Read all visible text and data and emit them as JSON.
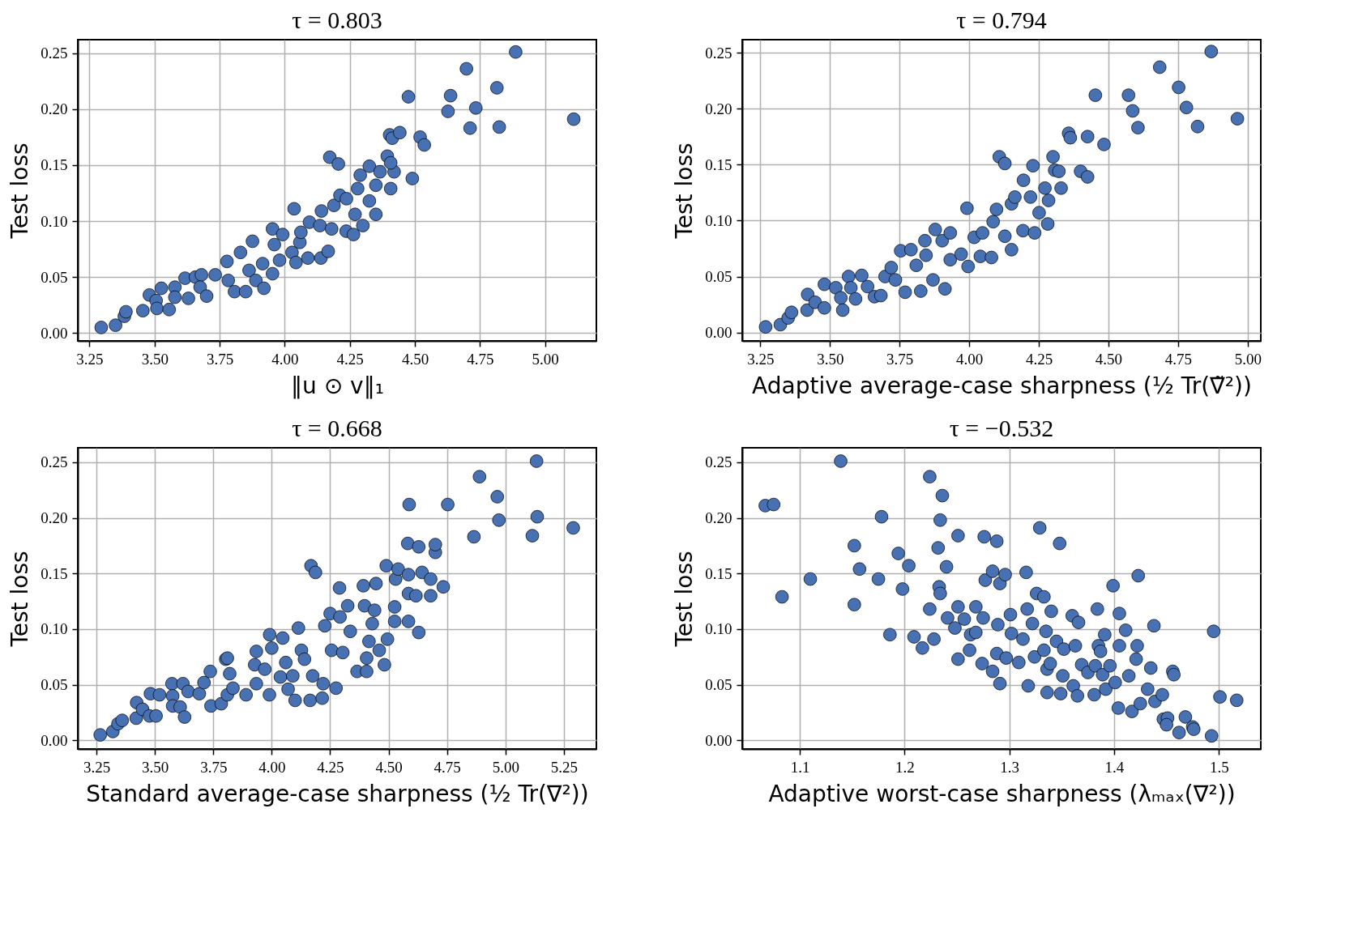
{
  "chart_data": [
    {
      "type": "scatter",
      "title": "τ = 0.803",
      "xlabel": "‖u ⊙ v‖₁",
      "ylabel": "Test loss",
      "grid": true,
      "marker": "circle",
      "xlim": [
        3.205,
        5.197
      ],
      "ylim": [
        -0.007,
        0.262
      ],
      "xticks": [
        3.25,
        {
          "value": 3.5,
          "label": "3.50"
        },
        3.75,
        {
          "value": 4,
          "label": "4.00"
        },
        4.25,
        {
          "value": 4.5,
          "label": "4.50"
        },
        4.75,
        {
          "value": 5,
          "label": "5.00"
        }
      ],
      "yticks": [
        {
          "value": 0,
          "label": "0.00"
        },
        0.05,
        {
          "value": 0.1,
          "label": "0.10"
        },
        0.15,
        {
          "value": 0.2,
          "label": "0.20"
        },
        0.25
      ],
      "series": [
        {
          "color": "#4771b2",
          "x": [
            3.295,
            3.35,
            3.384,
            3.39,
            3.455,
            3.48,
            3.506,
            3.509,
            3.556,
            3.526,
            3.578,
            3.578,
            3.63,
            3.617,
            3.657,
            3.68,
            3.675,
            3.7,
            3.733,
            3.778,
            3.783,
            3.807,
            3.85,
            3.83,
            3.876,
            3.863,
            3.889,
            3.915,
            3.92,
            3.953,
            3.953,
            3.96,
            3.98,
            3.992,
            4.028,
            4.036,
            4.043,
            4.058,
            4.062,
            4.095,
            4.089,
            4.135,
            4.139,
            4.167,
            4.141,
            4.18,
            4.189,
            4.212,
            4.237,
            4.236,
            4.264,
            4.27,
            4.3,
            4.173,
            4.206,
            4.28,
            4.29,
            4.325,
            4.325,
            4.35,
            4.35,
            4.366,
            4.394,
            4.42,
            4.407,
            4.407,
            4.403,
            4.413,
            4.442,
            4.49,
            4.52,
            4.536,
            4.475,
            4.627,
            4.637,
            4.698,
            4.712,
            4.734,
            4.815,
            4.824,
            4.887,
            5.11
          ],
          "values": [
            0.005,
            0.007,
            0.015,
            0.019,
            0.02,
            0.034,
            0.029,
            0.022,
            0.021,
            0.04,
            0.041,
            0.032,
            0.031,
            0.049,
            0.05,
            0.052,
            0.041,
            0.033,
            0.052,
            0.064,
            0.047,
            0.037,
            0.037,
            0.072,
            0.082,
            0.056,
            0.047,
            0.062,
            0.04,
            0.053,
            0.093,
            0.079,
            0.065,
            0.088,
            0.072,
            0.111,
            0.063,
            0.081,
            0.09,
            0.099,
            0.067,
            0.096,
            0.067,
            0.073,
            0.109,
            0.093,
            0.114,
            0.123,
            0.12,
            0.091,
            0.088,
            0.106,
            0.096,
            0.157,
            0.151,
            0.129,
            0.141,
            0.149,
            0.118,
            0.106,
            0.132,
            0.144,
            0.158,
            0.144,
            0.129,
            0.152,
            0.177,
            0.174,
            0.179,
            0.138,
            0.175,
            0.168,
            0.211,
            0.198,
            0.212,
            0.236,
            0.183,
            0.201,
            0.219,
            0.184,
            0.251,
            0.191
          ]
        }
      ]
    },
    {
      "type": "scatter",
      "title": "τ = 0.794",
      "xlabel": "Adaptive average-case sharpness (½ Tr(∇̃²))",
      "ylabel": "Test loss",
      "grid": true,
      "marker": "circle",
      "xlim": [
        3.185,
        5.047
      ],
      "ylim": [
        -0.0075,
        0.2616
      ],
      "xticks": [
        3.25,
        {
          "value": 3.5,
          "label": "3.50"
        },
        3.75,
        {
          "value": 4,
          "label": "4.00"
        },
        4.25,
        {
          "value": 4.5,
          "label": "4.50"
        },
        4.75,
        {
          "value": 5,
          "label": "5.00"
        }
      ],
      "yticks": [
        {
          "value": 0,
          "label": "0.00"
        },
        0.05,
        {
          "value": 0.1,
          "label": "0.10"
        },
        0.15,
        {
          "value": 0.2,
          "label": "0.20"
        },
        0.25
      ],
      "series": [
        {
          "color": "#4771b2",
          "x": [
            3.269,
            3.322,
            3.35,
            3.362,
            3.418,
            3.42,
            3.447,
            3.48,
            3.48,
            3.521,
            3.539,
            3.546,
            3.567,
            3.575,
            3.592,
            3.614,
            3.635,
            3.66,
            3.683,
            3.698,
            3.72,
            3.754,
            3.735,
            3.77,
            3.791,
            3.81,
            3.826,
            3.841,
            3.845,
            3.87,
            3.878,
            3.903,
            3.913,
            3.932,
            3.932,
            3.971,
            3.992,
            3.996,
            4.018,
            4.04,
            4.048,
            4.08,
            4.086,
            4.108,
            4.128,
            4.128,
            4.098,
            4.152,
            4.152,
            4.164,
            4.193,
            4.195,
            4.22,
            4.229,
            4.235,
            4.251,
            4.272,
            4.285,
            4.282,
            4.301,
            4.307,
            4.322,
            4.33,
            4.357,
            4.363,
            4.4,
            4.425,
            4.425,
            4.484,
            4.453,
            4.572,
            4.587,
            4.606,
            4.684,
            4.752,
            4.78,
            4.82,
            4.869,
            4.963
          ],
          "values": [
            0.005,
            0.007,
            0.013,
            0.018,
            0.02,
            0.034,
            0.027,
            0.043,
            0.022,
            0.04,
            0.031,
            0.02,
            0.05,
            0.04,
            0.03,
            0.051,
            0.041,
            0.032,
            0.033,
            0.05,
            0.058,
            0.073,
            0.047,
            0.036,
            0.074,
            0.06,
            0.037,
            0.082,
            0.069,
            0.047,
            0.092,
            0.082,
            0.039,
            0.089,
            0.065,
            0.07,
            0.111,
            0.059,
            0.085,
            0.068,
            0.089,
            0.067,
            0.099,
            0.157,
            0.151,
            0.086,
            0.11,
            0.115,
            0.074,
            0.121,
            0.091,
            0.136,
            0.121,
            0.149,
            0.089,
            0.107,
            0.129,
            0.118,
            0.097,
            0.157,
            0.145,
            0.144,
            0.129,
            0.178,
            0.174,
            0.144,
            0.175,
            0.139,
            0.168,
            0.212,
            0.212,
            0.198,
            0.183,
            0.237,
            0.219,
            0.201,
            0.184,
            0.251,
            0.191
          ]
        }
      ]
    },
    {
      "type": "scatter",
      "title": "τ = 0.668",
      "xlabel": "Standard average-case sharpness (½ Tr(∇²))",
      "ylabel": "Test loss",
      "grid": true,
      "marker": "circle",
      "xlim": [
        3.17,
        5.389
      ],
      "ylim": [
        -0.0077,
        0.263
      ],
      "xticks": [
        3.25,
        {
          "value": 3.5,
          "label": "3.50"
        },
        3.75,
        {
          "value": 4,
          "label": "4.00"
        },
        4.25,
        {
          "value": 4.5,
          "label": "4.50"
        },
        4.75,
        {
          "value": 5,
          "label": "5.00"
        },
        5.25
      ],
      "yticks": [
        {
          "value": 0,
          "label": "0.00"
        },
        0.05,
        {
          "value": 0.1,
          "label": "0.10"
        },
        0.15,
        {
          "value": 0.2,
          "label": "0.20"
        },
        0.25
      ],
      "series": [
        {
          "color": "#4771b2",
          "x": [
            3.266,
            3.32,
            3.342,
            3.36,
            3.42,
            3.422,
            3.447,
            3.477,
            3.481,
            3.505,
            3.52,
            3.573,
            3.576,
            3.576,
            3.608,
            3.627,
            3.62,
            3.642,
            3.69,
            3.71,
            3.737,
            3.74,
            3.784,
            3.803,
            3.81,
            3.81,
            3.82,
            3.834,
            3.89,
            3.927,
            3.934,
            3.934,
            3.97,
            3.99,
            3.991,
            4.0,
            4.037,
            4.047,
            4.06,
            4.07,
            4.09,
            4.1,
            4.114,
            4.127,
            4.14,
            4.164,
            4.168,
            4.187,
            4.175,
            4.216,
            4.22,
            4.227,
            4.25,
            4.256,
            4.275,
            4.29,
            4.292,
            4.304,
            4.325,
            4.336,
            4.365,
            4.392,
            4.397,
            4.406,
            4.406,
            4.416,
            4.43,
            4.44,
            4.446,
            4.46,
            4.482,
            4.49,
            4.495,
            4.526,
            4.526,
            4.53,
            4.541,
            4.585,
            4.585,
            4.585,
            4.582,
            4.617,
            4.629,
            4.629,
            4.643,
            4.68,
            4.68,
            4.7,
            4.7,
            4.734,
            4.588,
            4.753,
            4.865,
            4.889,
            4.965,
            4.972,
            5.115,
            5.136,
            5.133,
            5.29
          ],
          "values": [
            0.005,
            0.008,
            0.015,
            0.018,
            0.02,
            0.034,
            0.028,
            0.022,
            0.042,
            0.022,
            0.041,
            0.051,
            0.04,
            0.031,
            0.03,
            0.021,
            0.051,
            0.044,
            0.042,
            0.052,
            0.062,
            0.031,
            0.033,
            0.073,
            0.074,
            0.041,
            0.06,
            0.047,
            0.041,
            0.068,
            0.08,
            0.051,
            0.064,
            0.041,
            0.095,
            0.083,
            0.057,
            0.092,
            0.07,
            0.046,
            0.058,
            0.036,
            0.101,
            0.081,
            0.073,
            0.036,
            0.157,
            0.151,
            0.058,
            0.038,
            0.051,
            0.103,
            0.114,
            0.081,
            0.047,
            0.137,
            0.111,
            0.079,
            0.121,
            0.098,
            0.062,
            0.139,
            0.121,
            0.074,
            0.062,
            0.089,
            0.105,
            0.117,
            0.141,
            0.081,
            0.068,
            0.157,
            0.091,
            0.107,
            0.12,
            0.145,
            0.154,
            0.149,
            0.107,
            0.132,
            0.177,
            0.13,
            0.174,
            0.097,
            0.151,
            0.145,
            0.13,
            0.169,
            0.176,
            0.138,
            0.212,
            0.212,
            0.183,
            0.237,
            0.219,
            0.198,
            0.184,
            0.201,
            0.251,
            0.191
          ]
        }
      ]
    },
    {
      "type": "scatter",
      "title": "τ = −0.532",
      "xlabel": "Adaptive worst-case sharpness (λₘₐₓ(∇²))",
      "ylabel": "Test loss",
      "grid": true,
      "marker": "circle",
      "xlim": [
        1.045,
        1.54
      ],
      "ylim": [
        -0.0078,
        0.263
      ],
      "xticks": [
        1.1,
        1.2,
        1.3,
        1.4,
        1.5
      ],
      "yticks": [
        {
          "value": 0,
          "label": "0.00"
        },
        0.05,
        {
          "value": 0.1,
          "label": "0.10"
        },
        0.15,
        {
          "value": 0.2,
          "label": "0.20"
        },
        0.25
      ],
      "series": [
        {
          "color": "#4771b2",
          "x": [
            1.067,
            1.075,
            1.083,
            1.11,
            1.139,
            1.152,
            1.152,
            1.157,
            1.175,
            1.178,
            1.186,
            1.194,
            1.198,
            1.204,
            1.209,
            1.217,
            1.224,
            1.224,
            1.228,
            1.232,
            1.234,
            1.233,
            1.234,
            1.236,
            1.24,
            1.241,
            1.248,
            1.251,
            1.251,
            1.251,
            1.257,
            1.262,
            1.263,
            1.268,
            1.268,
            1.274,
            1.275,
            1.276,
            1.277,
            1.284,
            1.284,
            1.288,
            1.288,
            1.289,
            1.291,
            1.291,
            1.296,
            1.297,
            1.301,
            1.302,
            1.309,
            1.313,
            1.316,
            1.317,
            1.318,
            1.322,
            1.324,
            1.326,
            1.329,
            1.333,
            1.333,
            1.335,
            1.336,
            1.336,
            1.339,
            1.34,
            1.345,
            1.348,
            1.349,
            1.351,
            1.352,
            1.36,
            1.361,
            1.363,
            1.365,
            1.366,
            1.369,
            1.375,
            1.381,
            1.382,
            1.384,
            1.385,
            1.387,
            1.389,
            1.391,
            1.392,
            1.396,
            1.399,
            1.401,
            1.404,
            1.405,
            1.405,
            1.411,
            1.414,
            1.417,
            1.421,
            1.422,
            1.423,
            1.425,
            1.432,
            1.435,
            1.438,
            1.439,
            1.446,
            1.447,
            1.451,
            1.45,
            1.456,
            1.457,
            1.462,
            1.468,
            1.475,
            1.476,
            1.493,
            1.495,
            1.501,
            1.517
          ],
          "values": [
            0.211,
            0.212,
            0.129,
            0.145,
            0.251,
            0.175,
            0.122,
            0.154,
            0.145,
            0.201,
            0.095,
            0.168,
            0.136,
            0.157,
            0.093,
            0.083,
            0.237,
            0.118,
            0.091,
            0.173,
            0.198,
            0.138,
            0.132,
            0.22,
            0.156,
            0.11,
            0.101,
            0.184,
            0.12,
            0.073,
            0.109,
            0.081,
            0.095,
            0.12,
            0.097,
            0.069,
            0.11,
            0.183,
            0.144,
            0.062,
            0.152,
            0.179,
            0.078,
            0.104,
            0.141,
            0.051,
            0.149,
            0.074,
            0.113,
            0.096,
            0.07,
            0.091,
            0.151,
            0.118,
            0.049,
            0.105,
            0.075,
            0.132,
            0.191,
            0.129,
            0.081,
            0.098,
            0.064,
            0.043,
            0.069,
            0.116,
            0.089,
            0.177,
            0.042,
            0.058,
            0.082,
            0.112,
            0.049,
            0.085,
            0.04,
            0.106,
            0.068,
            0.061,
            0.041,
            0.067,
            0.118,
            0.085,
            0.08,
            0.059,
            0.095,
            0.046,
            0.067,
            0.139,
            0.052,
            0.029,
            0.114,
            0.085,
            0.099,
            0.058,
            0.026,
            0.073,
            0.085,
            0.148,
            0.033,
            0.046,
            0.065,
            0.103,
            0.035,
            0.041,
            0.019,
            0.02,
            0.014,
            0.062,
            0.059,
            0.007,
            0.021,
            0.012,
            0.01,
            0.004,
            0.098,
            0.039,
            0.036
          ]
        }
      ]
    }
  ]
}
